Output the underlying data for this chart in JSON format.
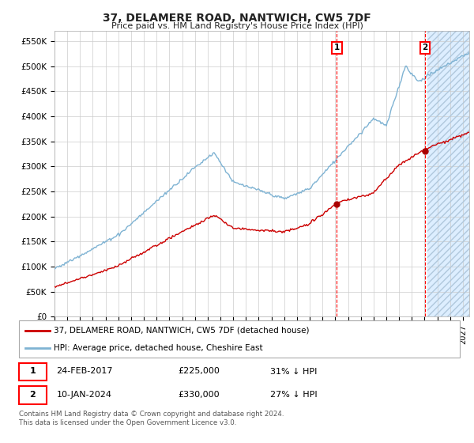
{
  "title": "37, DELAMERE ROAD, NANTWICH, CW5 7DF",
  "subtitle": "Price paid vs. HM Land Registry's House Price Index (HPI)",
  "title_fontsize": 10,
  "subtitle_fontsize": 8.5,
  "ylabel_ticks": [
    "£0",
    "£50K",
    "£100K",
    "£150K",
    "£200K",
    "£250K",
    "£300K",
    "£350K",
    "£400K",
    "£450K",
    "£500K",
    "£550K"
  ],
  "ytick_values": [
    0,
    50000,
    100000,
    150000,
    200000,
    250000,
    300000,
    350000,
    400000,
    450000,
    500000,
    550000
  ],
  "ylim": [
    0,
    570000
  ],
  "xlim_start": 1995.0,
  "xlim_end": 2027.5,
  "marker1_date": 2017.12,
  "marker1_price": 225000,
  "marker2_date": 2024.03,
  "marker2_price": 330000,
  "future_start": 2024.25,
  "legend_line1": "37, DELAMERE ROAD, NANTWICH, CW5 7DF (detached house)",
  "legend_line2": "HPI: Average price, detached house, Cheshire East",
  "footer": "Contains HM Land Registry data © Crown copyright and database right 2024.\nThis data is licensed under the Open Government Licence v3.0.",
  "red_line_color": "#cc0000",
  "blue_line_color": "#7fb3d3",
  "grid_color": "#cccccc",
  "background_color": "#ffffff",
  "future_shade_color": "#ddeeff",
  "hatch_color": "#b0c8dd",
  "red_dot_color": "#aa0000"
}
